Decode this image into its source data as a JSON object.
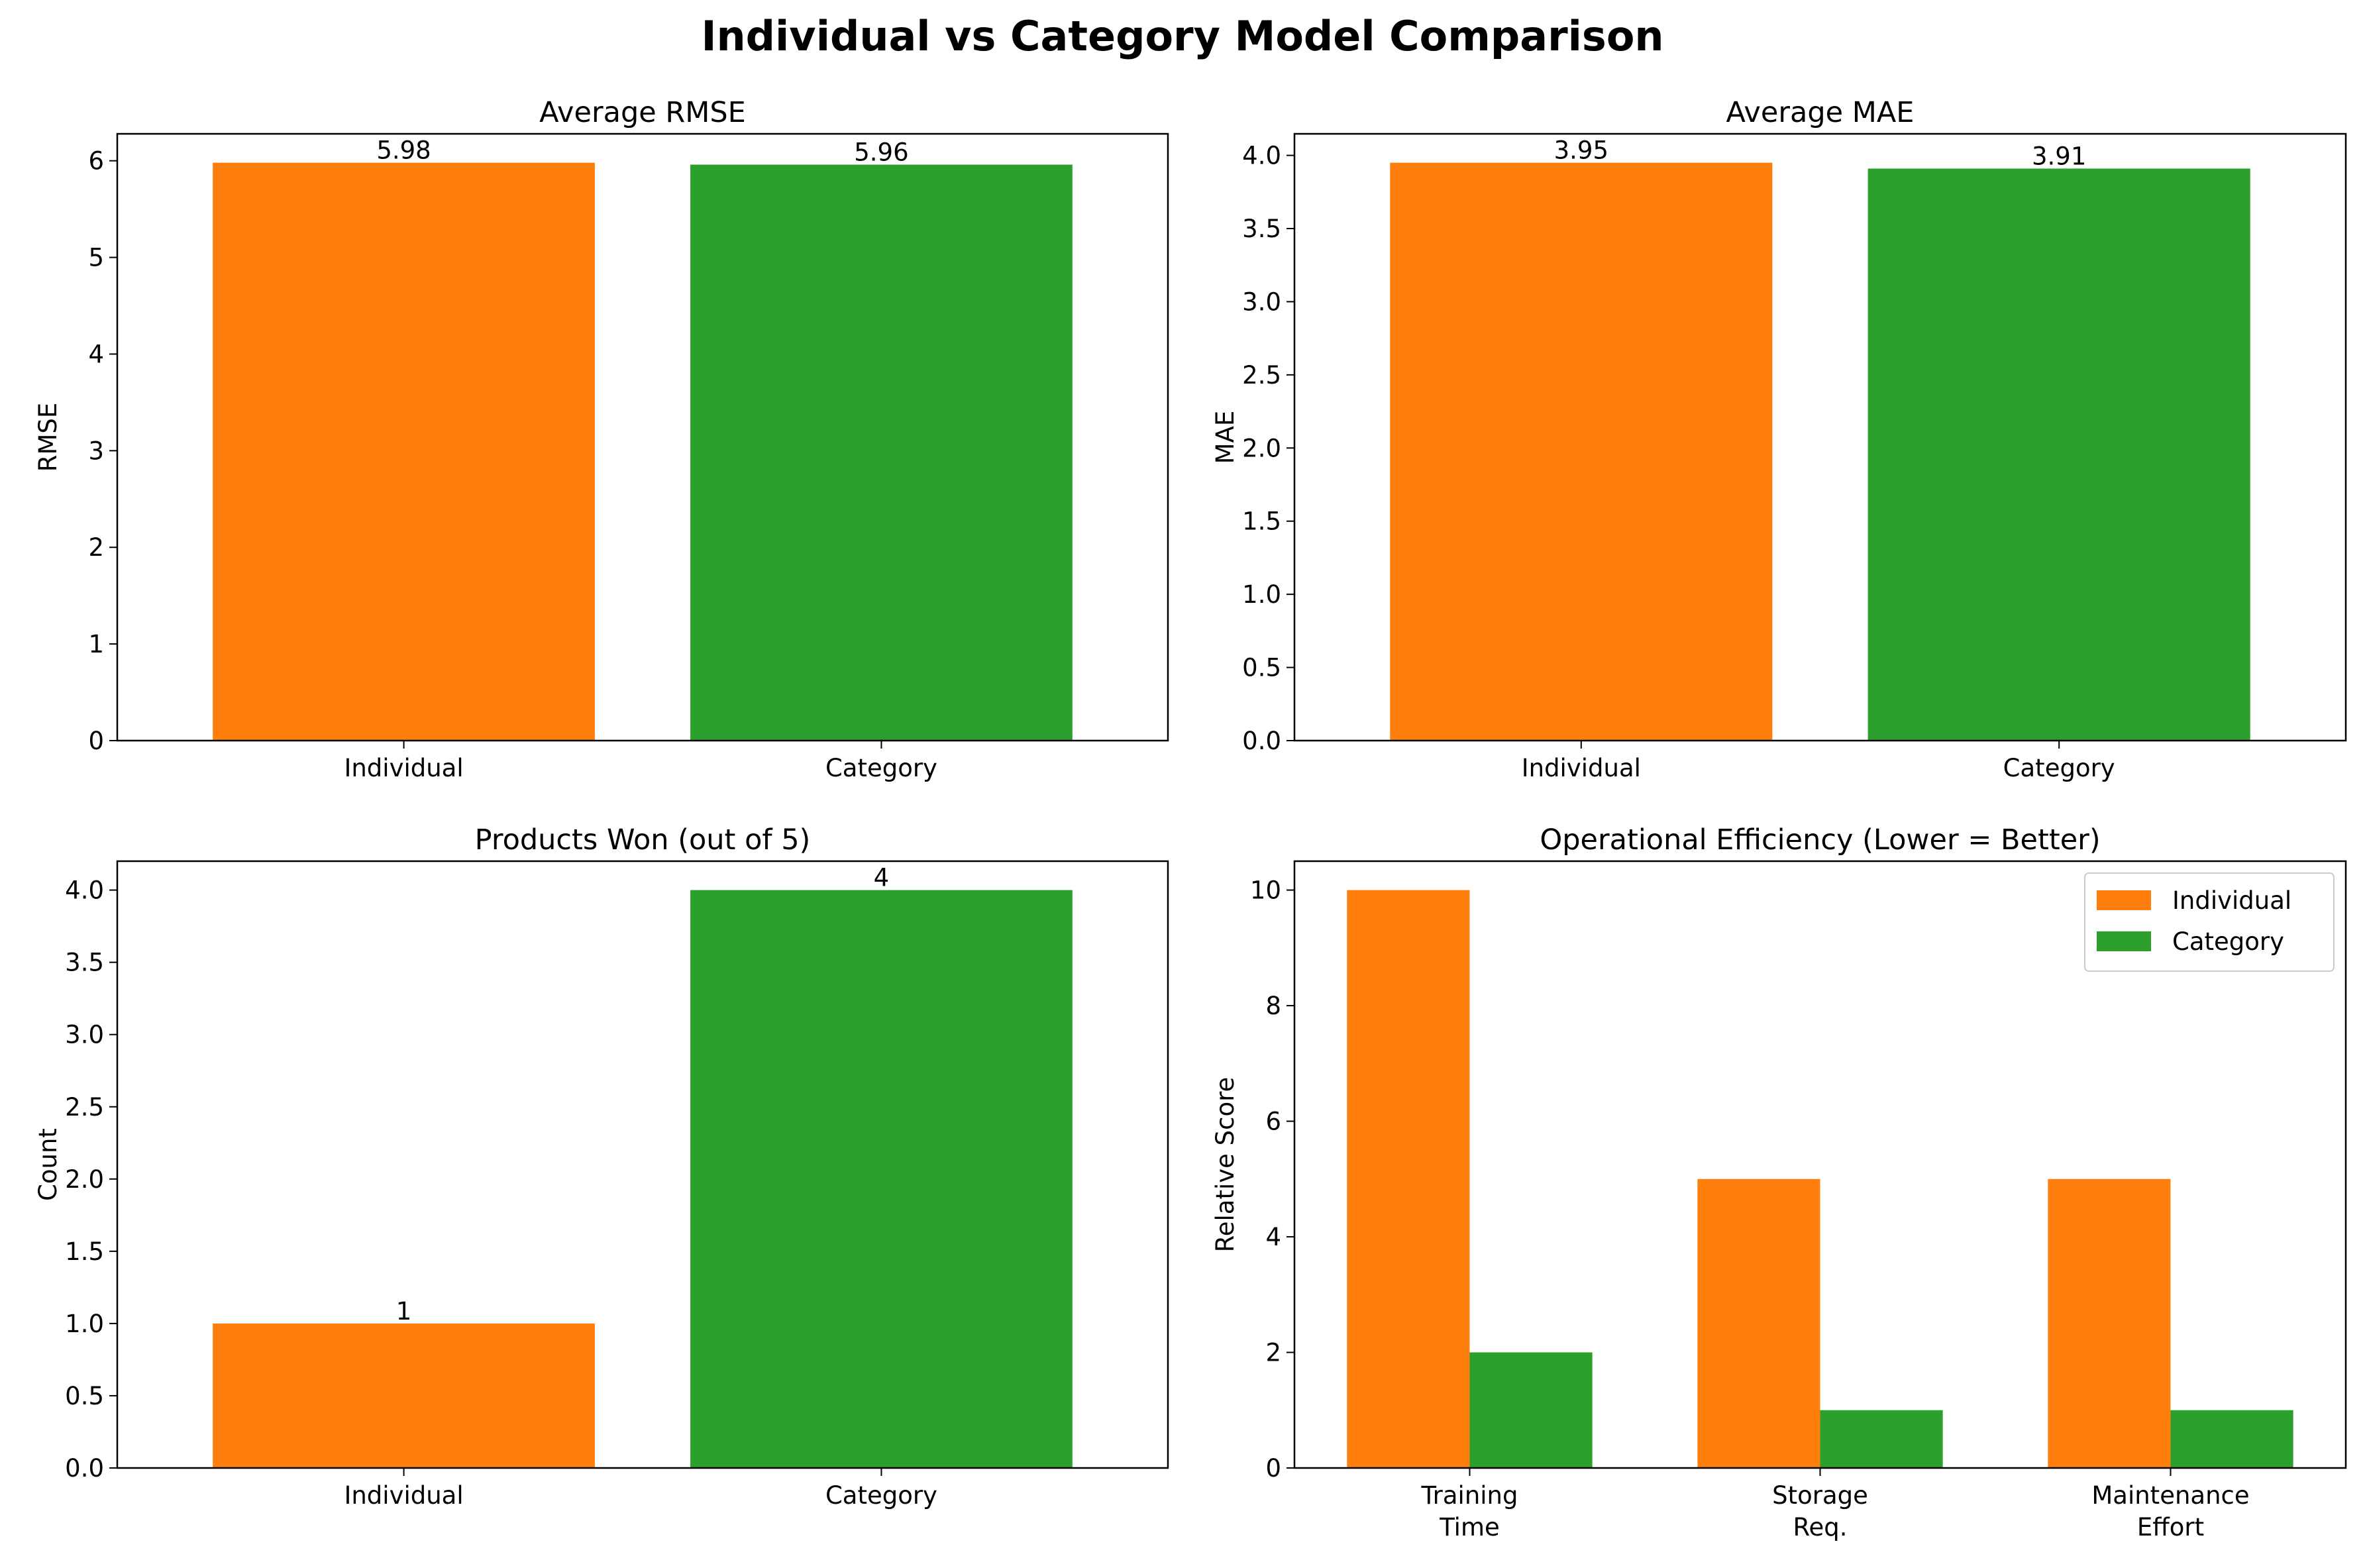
{
  "title": "Individual vs Category Model Comparison",
  "colors": {
    "individual": "#ff7f0e",
    "category": "#2ca02c"
  },
  "chart_data": [
    {
      "type": "bar",
      "title": "Average RMSE",
      "ylabel": "RMSE",
      "categories": [
        "Individual",
        "Category"
      ],
      "values": [
        5.98,
        5.96
      ],
      "value_labels": [
        "5.98",
        "5.96"
      ],
      "ylim": [
        0,
        6.279
      ],
      "yticks": [
        0,
        1,
        2,
        3,
        4,
        5,
        6
      ],
      "ytick_labels": [
        "0",
        "1",
        "2",
        "3",
        "4",
        "5",
        "6"
      ]
    },
    {
      "type": "bar",
      "title": "Average MAE",
      "ylabel": "MAE",
      "categories": [
        "Individual",
        "Category"
      ],
      "values": [
        3.95,
        3.91
      ],
      "value_labels": [
        "3.95",
        "3.91"
      ],
      "ylim": [
        0,
        4.1475
      ],
      "yticks": [
        0,
        0.5,
        1,
        1.5,
        2,
        2.5,
        3,
        3.5,
        4
      ],
      "ytick_labels": [
        "0.0",
        "0.5",
        "1.0",
        "1.5",
        "2.0",
        "2.5",
        "3.0",
        "3.5",
        "4.0"
      ]
    },
    {
      "type": "bar",
      "title": "Products Won (out of 5)",
      "ylabel": "Count",
      "categories": [
        "Individual",
        "Category"
      ],
      "values": [
        1,
        4
      ],
      "value_labels": [
        "1",
        "4"
      ],
      "ylim": [
        0,
        4.2
      ],
      "yticks": [
        0,
        0.5,
        1,
        1.5,
        2,
        2.5,
        3,
        3.5,
        4
      ],
      "ytick_labels": [
        "0.0",
        "0.5",
        "1.0",
        "1.5",
        "2.0",
        "2.5",
        "3.0",
        "3.5",
        "4.0"
      ]
    },
    {
      "type": "bar",
      "title": "Operational Efficiency (Lower = Better)",
      "ylabel": "Relative Score",
      "categories": [
        [
          "Training",
          "Time"
        ],
        [
          "Storage",
          "Req."
        ],
        [
          "Maintenance",
          "Effort"
        ]
      ],
      "series": [
        {
          "name": "Individual",
          "values": [
            10,
            5,
            5
          ]
        },
        {
          "name": "Category",
          "values": [
            2,
            1,
            1
          ]
        }
      ],
      "ylim": [
        0,
        10.5
      ],
      "yticks": [
        0,
        2,
        4,
        6,
        8,
        10
      ],
      "ytick_labels": [
        "0",
        "2",
        "4",
        "6",
        "8",
        "10"
      ],
      "legend": "top-right"
    }
  ]
}
